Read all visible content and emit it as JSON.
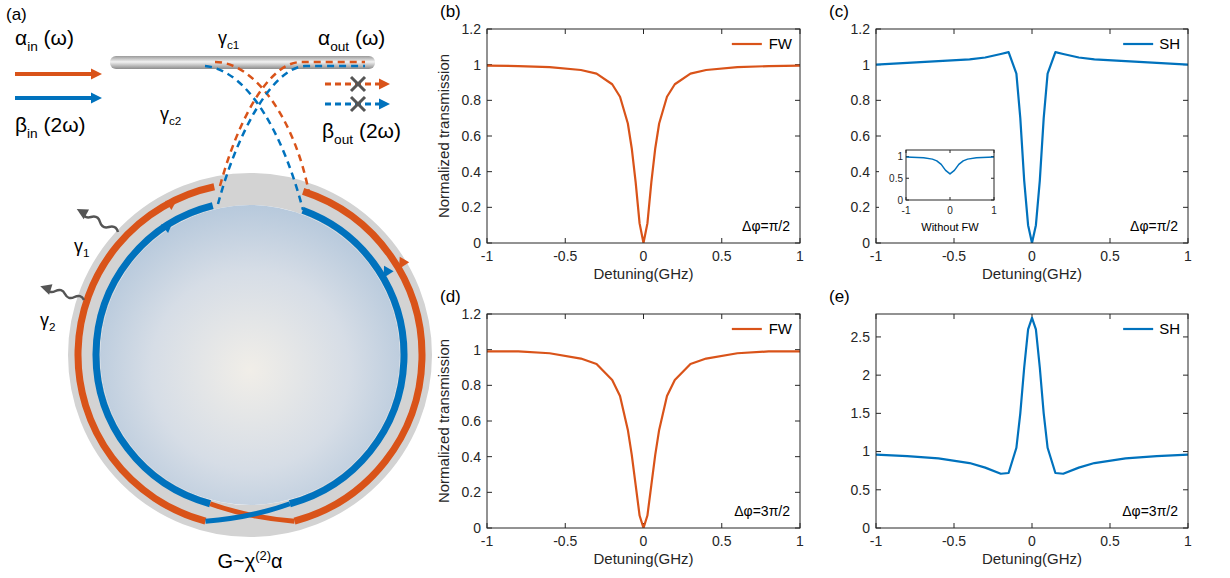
{
  "diagram": {
    "panel": "(a)",
    "labels": [
      {
        "text": "α",
        "sub": "in",
        "tail": " (ω)"
      },
      {
        "text": "β",
        "sub": "in",
        "tail": " (2ω)"
      },
      {
        "text": "α",
        "sub": "out",
        "tail": " (ω)"
      },
      {
        "text": "β",
        "sub": "out",
        "tail": " (2ω)"
      },
      {
        "text": "γ",
        "sub": "c1"
      },
      {
        "text": "γ",
        "sub": "c2"
      },
      {
        "text": "γ",
        "sub": "1"
      },
      {
        "text": "γ",
        "sub": "2"
      },
      {
        "text": "G~χ",
        "sup": "(2)",
        "tail": "α"
      }
    ]
  },
  "panel_labels": [
    "(b)",
    "(c)",
    "(d)",
    "(e)"
  ],
  "chart_data": [
    {
      "type": "line",
      "x_label": "Detuning(GHz)",
      "y_label": "Normalized transmission",
      "annotations": [
        "Δφ=π/2"
      ],
      "xlim": [
        -1,
        1
      ],
      "ylim": [
        0,
        1.2
      ],
      "xticks": [
        -1,
        -0.5,
        0,
        0.5,
        1
      ],
      "yticks": [
        0,
        0.2,
        0.4,
        0.6,
        0.8,
        1,
        1.2
      ],
      "legend": "upper right",
      "x": [
        -1,
        -0.8,
        -0.6,
        -0.4,
        -0.3,
        -0.2,
        -0.15,
        -0.1,
        -0.075,
        -0.05,
        -0.025,
        0,
        0.025,
        0.05,
        0.075,
        0.1,
        0.15,
        0.2,
        0.3,
        0.4,
        0.6,
        0.8,
        1
      ],
      "series": [
        {
          "name": "FW",
          "color": "#D95319",
          "values": [
            0.995,
            0.992,
            0.986,
            0.97,
            0.95,
            0.89,
            0.82,
            0.67,
            0.53,
            0.34,
            0.11,
            0,
            0.11,
            0.34,
            0.53,
            0.67,
            0.82,
            0.89,
            0.95,
            0.97,
            0.986,
            0.992,
            0.995
          ]
        }
      ]
    },
    {
      "type": "line",
      "x_label": "Detuning(GHz)",
      "annotations": [
        "Δφ=π/2"
      ],
      "xlim": [
        -1,
        1
      ],
      "ylim": [
        0,
        1.2
      ],
      "xticks": [
        -1,
        -0.5,
        0,
        0.5,
        1
      ],
      "yticks": [
        0,
        0.2,
        0.4,
        0.6,
        0.8,
        1,
        1.2
      ],
      "legend": "upper right",
      "x": [
        -1,
        -0.8,
        -0.6,
        -0.4,
        -0.3,
        -0.2,
        -0.15,
        -0.1,
        -0.075,
        -0.05,
        -0.025,
        0,
        0.025,
        0.05,
        0.075,
        0.1,
        0.15,
        0.2,
        0.3,
        0.4,
        0.6,
        0.8,
        1
      ],
      "series": [
        {
          "name": "SH",
          "color": "#0072BD",
          "values": [
            1.0,
            1.01,
            1.02,
            1.03,
            1.04,
            1.06,
            1.07,
            0.95,
            0.7,
            0.35,
            0.1,
            0,
            0.1,
            0.35,
            0.7,
            0.95,
            1.07,
            1.06,
            1.04,
            1.03,
            1.02,
            1.01,
            1.0
          ]
        }
      ]
    },
    {
      "type": "line",
      "x_label": "Detuning(GHz)",
      "y_label": "Normalized transmission",
      "annotations": [
        "Δφ=3π/2"
      ],
      "xlim": [
        -1,
        1
      ],
      "ylim": [
        0,
        1.2
      ],
      "xticks": [
        -1,
        -0.5,
        0,
        0.5,
        1
      ],
      "yticks": [
        0,
        0.2,
        0.4,
        0.6,
        0.8,
        1,
        1.2
      ],
      "legend": "upper right",
      "x": [
        -1,
        -0.8,
        -0.6,
        -0.4,
        -0.3,
        -0.2,
        -0.15,
        -0.1,
        -0.075,
        -0.05,
        -0.025,
        0,
        0.025,
        0.05,
        0.075,
        0.1,
        0.15,
        0.2,
        0.3,
        0.4,
        0.6,
        0.8,
        1
      ],
      "series": [
        {
          "name": "FW",
          "color": "#D95319",
          "values": [
            0.99,
            0.99,
            0.98,
            0.95,
            0.92,
            0.83,
            0.74,
            0.55,
            0.41,
            0.24,
            0.07,
            0,
            0.07,
            0.24,
            0.41,
            0.55,
            0.74,
            0.83,
            0.92,
            0.95,
            0.98,
            0.99,
            0.99
          ]
        }
      ]
    },
    {
      "type": "line",
      "x_label": "Detuning(GHz)",
      "annotations": [
        "Δφ=3π/2"
      ],
      "xlim": [
        -1,
        1
      ],
      "ylim": [
        0,
        2.8
      ],
      "xticks": [
        -1,
        -0.5,
        0,
        0.5,
        1
      ],
      "yticks": [
        0,
        0.5,
        1,
        1.5,
        2,
        2.5
      ],
      "legend": "upper right",
      "x": [
        -1,
        -0.8,
        -0.6,
        -0.4,
        -0.3,
        -0.2,
        -0.15,
        -0.1,
        -0.075,
        -0.05,
        -0.025,
        0,
        0.025,
        0.05,
        0.075,
        0.1,
        0.15,
        0.2,
        0.3,
        0.4,
        0.6,
        0.8,
        1
      ],
      "series": [
        {
          "name": "SH",
          "color": "#0072BD",
          "values": [
            0.96,
            0.94,
            0.91,
            0.85,
            0.79,
            0.71,
            0.72,
            1.05,
            1.5,
            2.1,
            2.6,
            2.75,
            2.6,
            2.1,
            1.5,
            1.05,
            0.72,
            0.71,
            0.79,
            0.85,
            0.91,
            0.94,
            0.96
          ]
        }
      ]
    },
    {
      "type": "line",
      "annotations": [
        "Without FW"
      ],
      "xlim": [
        -1,
        1
      ],
      "ylim": [
        0,
        1.15
      ],
      "xticks": [
        -1,
        0,
        1
      ],
      "yticks": [
        0,
        0.5,
        1
      ],
      "x": [
        -1,
        -0.6,
        -0.4,
        -0.3,
        -0.2,
        -0.1,
        0,
        0.1,
        0.2,
        0.3,
        0.4,
        0.6,
        1
      ],
      "series": [
        {
          "color": "#0072BD",
          "values": [
            0.99,
            0.97,
            0.94,
            0.9,
            0.82,
            0.68,
            0.6,
            0.68,
            0.82,
            0.9,
            0.94,
            0.97,
            0.99
          ]
        }
      ]
    }
  ]
}
